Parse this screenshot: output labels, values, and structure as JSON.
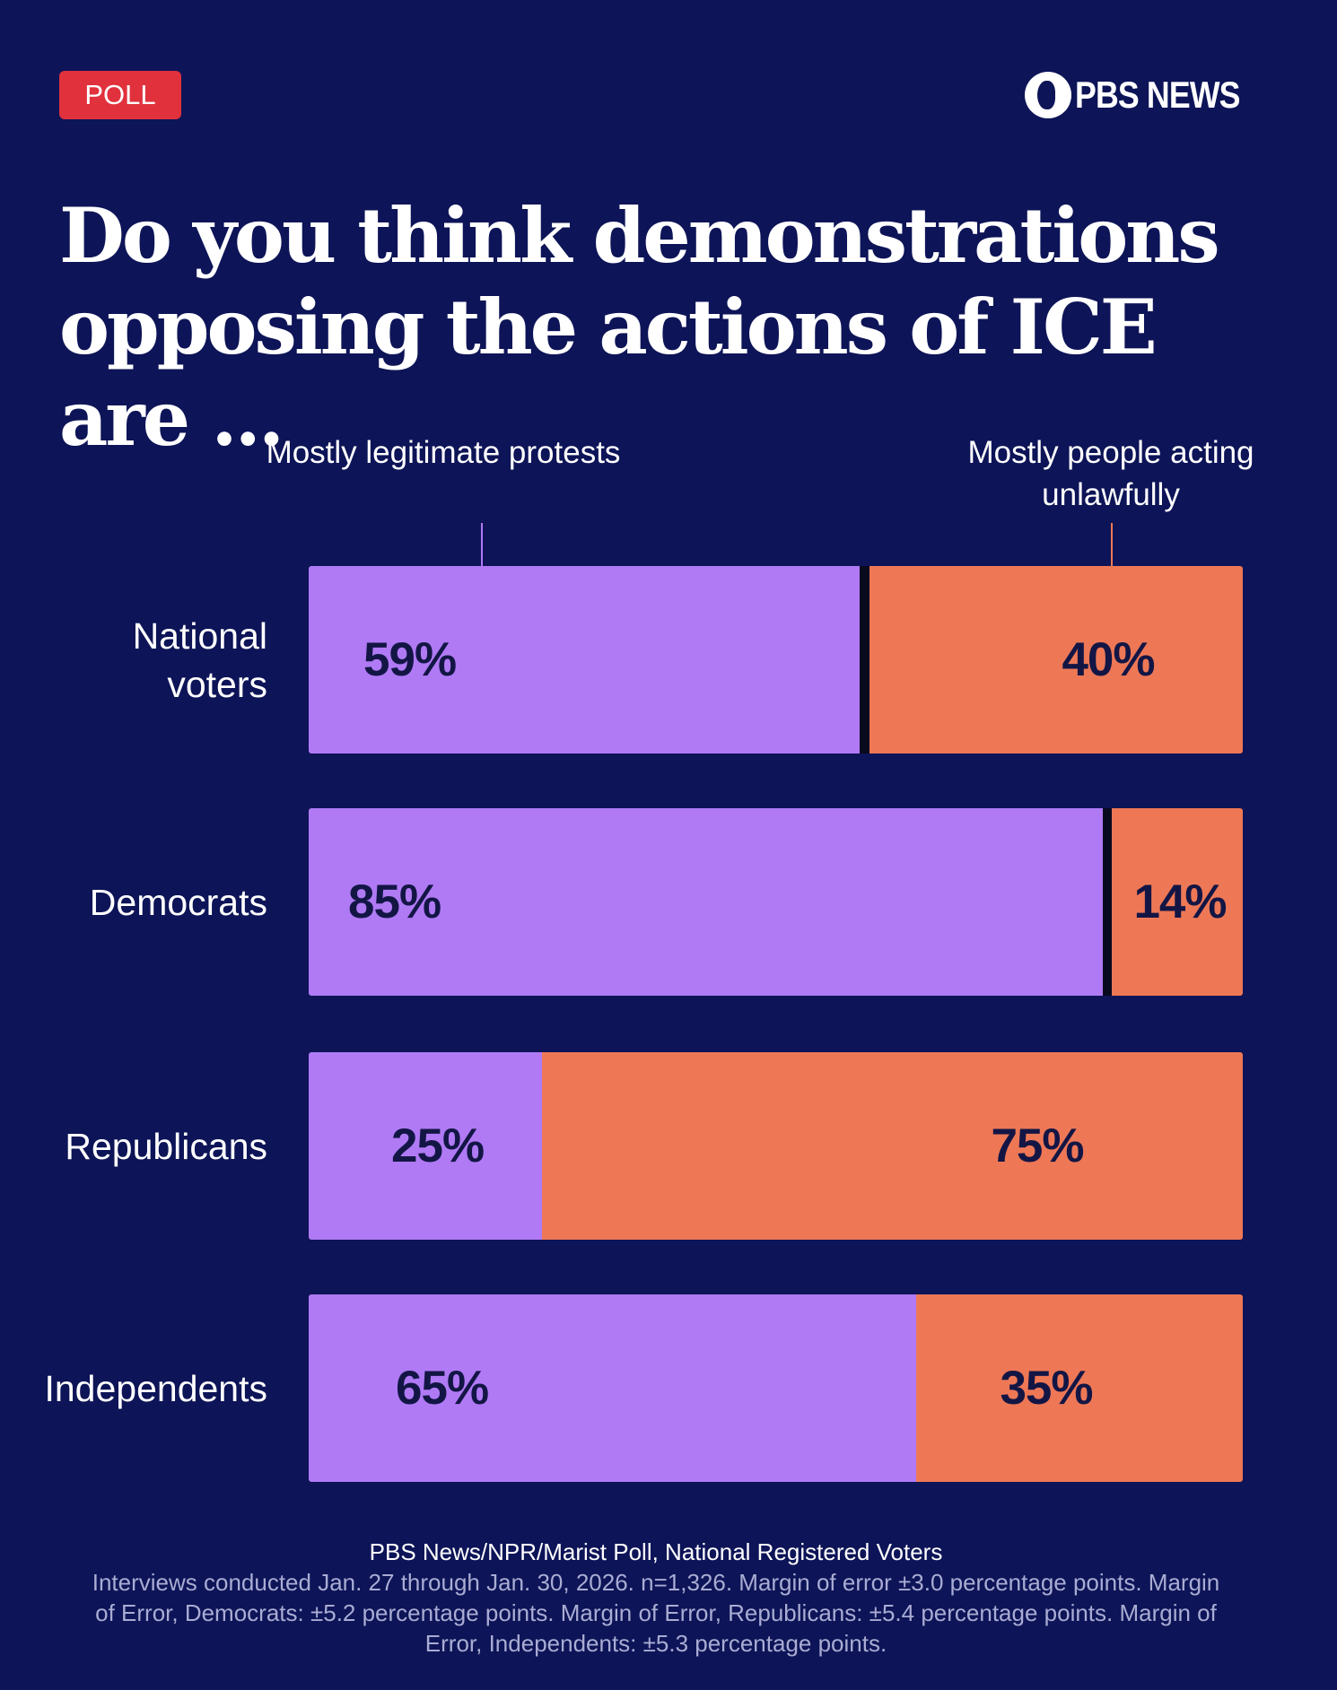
{
  "badge": "POLL",
  "logo": "PBS NEWS",
  "title": "Do you think demonstrations opposing the actions of ICE are ...",
  "chart_data": {
    "type": "bar",
    "orientation": "horizontal",
    "stacked": true,
    "title": "Do you think demonstrations opposing the actions of ICE are ...",
    "categories": [
      "National voters",
      "Democrats",
      "Republicans",
      "Independents"
    ],
    "series": [
      {
        "name": "Mostly legitimate protests",
        "values": [
          59,
          85,
          25,
          65
        ],
        "color": "#b07af5"
      },
      {
        "name": "Mostly people acting unlawfully",
        "values": [
          40,
          14,
          75,
          35
        ],
        "color": "#ee7856"
      }
    ],
    "unit": "%",
    "xlim": [
      0,
      100
    ],
    "grid": false,
    "legend": "top"
  },
  "legend": {
    "left": "Mostly legitimate protests",
    "right": "Mostly people acting unlawfully"
  },
  "labels": {
    "rows": [
      "National voters",
      "Democrats",
      "Republicans",
      "Independents"
    ],
    "left_pct": [
      "59%",
      "85%",
      "25%",
      "65%"
    ],
    "right_pct": [
      "40%",
      "14%",
      "75%",
      "35%"
    ]
  },
  "footer": {
    "source": "PBS News/NPR/Marist Poll, National Registered Voters",
    "notes": "Interviews conducted Jan. 27 through Jan. 30, 2026. n=1,326. Margin of error ±3.0 percentage points. Margin of Error, Democrats: ±5.2 percentage points. Margin of Error, Republicans: ±5.4 percentage points. Margin of Error, Independents: ±5.3 percentage points."
  },
  "colors": {
    "background": "#0d1457",
    "badge": "#e0313d",
    "legitimate": "#b07af5",
    "unlawful": "#ee7856"
  }
}
